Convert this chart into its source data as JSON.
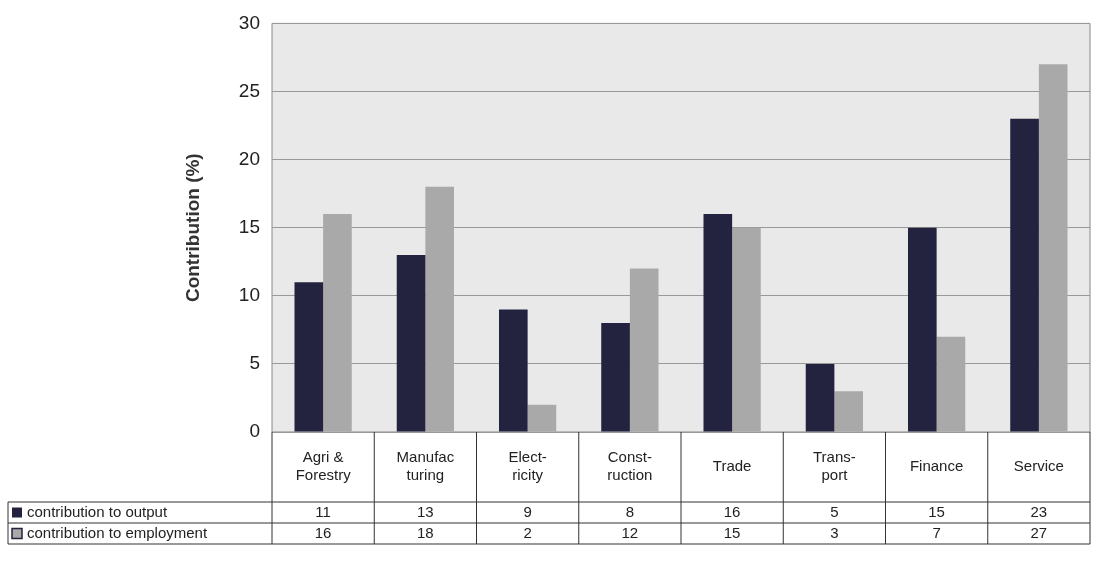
{
  "chart_data": {
    "type": "bar",
    "ylabel": "Contribution (%)",
    "categories": [
      "Agri &\nForestry",
      "Manufac\nturing",
      "Elect-\nricity",
      "Const-\nruction",
      "Trade",
      "Trans-\nport",
      "Finance",
      "Service"
    ],
    "series": [
      {
        "name": "contribution to output",
        "color": "#23233f",
        "values": [
          11,
          13,
          9,
          8,
          16,
          5,
          15,
          23
        ]
      },
      {
        "name": "contribution to employment",
        "color": "#a9a9a9",
        "values": [
          16,
          18,
          2,
          12,
          15,
          3,
          7,
          27
        ]
      }
    ],
    "ylim": [
      0,
      30
    ],
    "yticks": [
      0,
      5,
      10,
      15,
      20,
      25,
      30
    ],
    "grid": "y",
    "legend": "bottom",
    "data_labels": true
  }
}
